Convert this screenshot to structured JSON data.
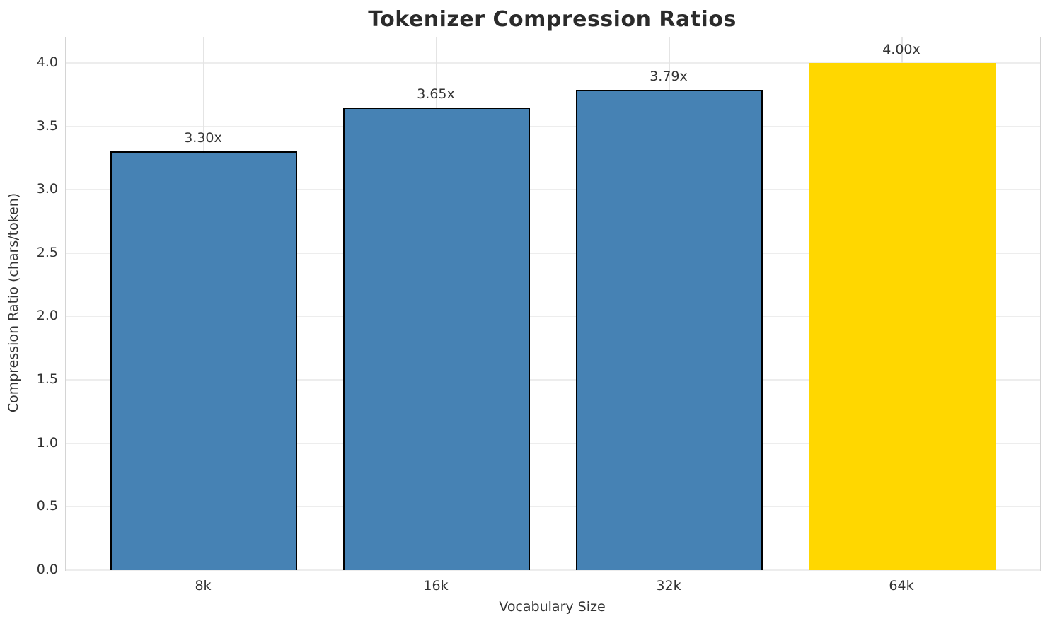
{
  "chart_data": {
    "type": "bar",
    "title": "Tokenizer Compression Ratios",
    "xlabel": "Vocabulary Size",
    "ylabel": "Compression Ratio (chars/token)",
    "categories": [
      "8k",
      "16k",
      "32k",
      "64k"
    ],
    "values": [
      3.3,
      3.65,
      3.79,
      4.0
    ],
    "bar_labels": [
      "3.30x",
      "3.65x",
      "3.79x",
      "4.00x"
    ],
    "bar_colors": [
      "#4682B4",
      "#4682B4",
      "#4682B4",
      "#FFD700"
    ],
    "bar_edge_colors": [
      "#000000",
      "#000000",
      "#000000",
      "none"
    ],
    "ylim": [
      0,
      4.2
    ],
    "yticks": [
      0.0,
      0.5,
      1.0,
      1.5,
      2.0,
      2.5,
      3.0,
      3.5,
      4.0
    ],
    "ytick_labels": [
      "0.0",
      "0.5",
      "1.0",
      "1.5",
      "2.0",
      "2.5",
      "3.0",
      "3.5",
      "4.0"
    ],
    "grid": true,
    "legend": "none",
    "colors": {
      "bar_default": "#4682B4",
      "bar_highlight": "#FFD700",
      "bar_edge": "#000000",
      "grid": "#ededed",
      "spine": "#d4d4d4",
      "tick_text": "#333333",
      "title_text": "#2b2b2b",
      "background": "#ffffff"
    }
  }
}
